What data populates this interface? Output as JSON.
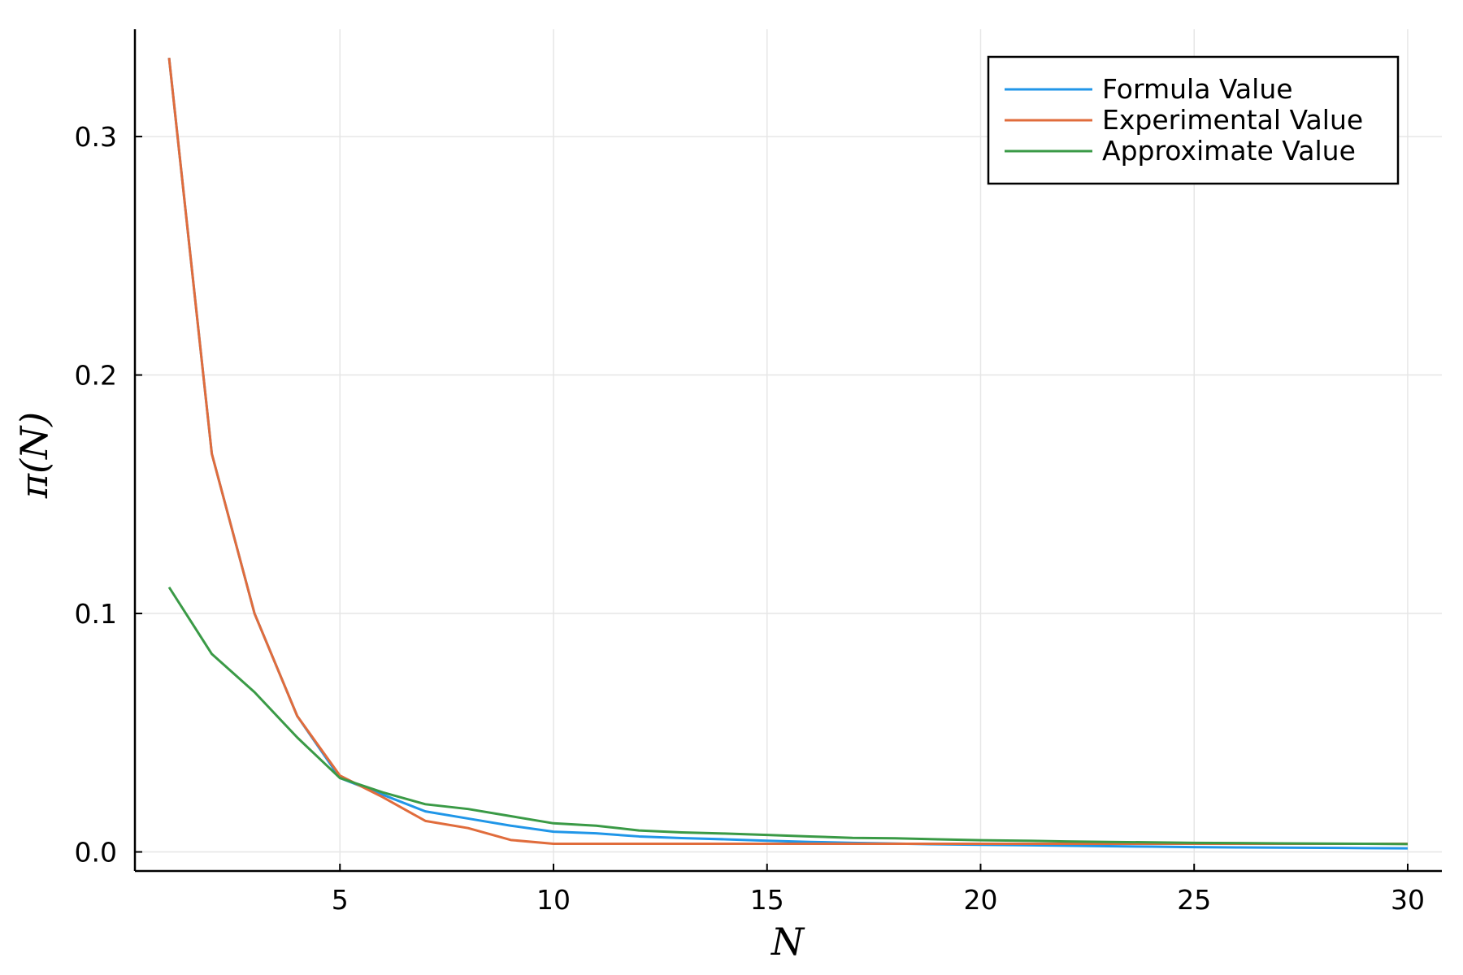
{
  "chart_data": {
    "type": "line",
    "title": "",
    "xlabel": "N",
    "ylabel": "π(N)",
    "xlim": [
      0.2,
      30.8
    ],
    "ylim": [
      -0.008,
      0.345
    ],
    "xticks": [
      5,
      10,
      15,
      20,
      25,
      30
    ],
    "xtick_labels": [
      "5",
      "10",
      "15",
      "20",
      "25",
      "30"
    ],
    "yticks": [
      0.0,
      0.1,
      0.2,
      0.3
    ],
    "ytick_labels": [
      "0.0",
      "0.1",
      "0.2",
      "0.3"
    ],
    "grid": true,
    "legend_position": "top-right",
    "x": [
      1,
      2,
      3,
      4,
      5,
      6,
      7,
      8,
      9,
      10,
      11,
      12,
      13,
      14,
      15,
      16,
      17,
      18,
      19,
      20,
      21,
      22,
      23,
      24,
      25,
      26,
      27,
      28,
      29,
      30
    ],
    "series": [
      {
        "name": "Formula Value",
        "color": "#2096e8",
        "values": [
          0.333,
          0.167,
          0.1,
          0.057,
          0.031,
          0.024,
          0.017,
          0.014,
          0.011,
          0.0085,
          0.0078,
          0.0065,
          0.0058,
          0.0053,
          0.0047,
          0.0042,
          0.0038,
          0.0035,
          0.0032,
          0.003,
          0.0028,
          0.0026,
          0.0024,
          0.0022,
          0.002,
          0.0019,
          0.0018,
          0.0017,
          0.0016,
          0.0015
        ]
      },
      {
        "name": "Experimental Value",
        "color": "#e06c3c",
        "values": [
          0.333,
          0.167,
          0.1,
          0.057,
          0.032,
          0.023,
          0.013,
          0.01,
          0.005,
          0.0034,
          0.0034,
          0.0034,
          0.0034,
          0.0034,
          0.0034,
          0.0034,
          0.0034,
          0.0034,
          0.0034,
          0.0034,
          0.0034,
          0.0034,
          0.0034,
          0.0034,
          0.0034,
          0.0034,
          0.0034,
          0.0034,
          0.0034,
          0.0034
        ]
      },
      {
        "name": "Approximate Value",
        "color": "#3a9a46",
        "values": [
          0.111,
          0.083,
          0.067,
          0.048,
          0.031,
          0.025,
          0.02,
          0.018,
          0.015,
          0.012,
          0.011,
          0.009,
          0.0082,
          0.0077,
          0.0071,
          0.0065,
          0.0059,
          0.0057,
          0.0053,
          0.0049,
          0.0047,
          0.0044,
          0.0042,
          0.004,
          0.0038,
          0.0037,
          0.0036,
          0.0035,
          0.0034,
          0.0033
        ]
      }
    ]
  }
}
